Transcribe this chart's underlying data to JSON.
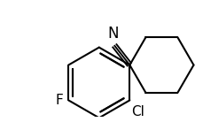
{
  "background": "#ffffff",
  "bond_color": "#000000",
  "bond_lw": 1.5,
  "label_N_text": "N",
  "label_F_text": "F",
  "label_Cl_text": "Cl",
  "label_fontsize": 11,
  "figsize": [
    2.3,
    1.38
  ],
  "dpi": 100
}
